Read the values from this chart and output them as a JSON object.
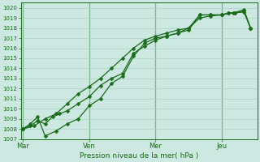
{
  "xlabel": "Pression niveau de la mer( hPa )",
  "bg_color": "#cce8e0",
  "grid_color": "#aad4c8",
  "line_color": "#1a6b1a",
  "spine_color": "#1a6b1a",
  "ylim": [
    1007,
    1020.5
  ],
  "ytick_min": 1007,
  "ytick_max": 1020,
  "xtick_labels": [
    "Mar",
    "Ven",
    "Mer",
    "Jeu"
  ],
  "xtick_positions": [
    0.0,
    3.0,
    6.0,
    9.0
  ],
  "xlim": [
    -0.1,
    10.6
  ],
  "series1_x": [
    0.0,
    0.33,
    0.66,
    1.0,
    1.33,
    1.66,
    2.0,
    2.5,
    3.0,
    3.5,
    4.0,
    4.5,
    5.0,
    5.5,
    6.0,
    6.5,
    7.0,
    7.5,
    8.0,
    8.5,
    9.0,
    9.3,
    9.6,
    10.0,
    10.3
  ],
  "series1_y": [
    1008.0,
    1008.3,
    1008.8,
    1008.5,
    1009.2,
    1009.5,
    1009.8,
    1010.5,
    1011.2,
    1012.3,
    1013.0,
    1013.5,
    1015.5,
    1016.2,
    1016.8,
    1017.2,
    1017.5,
    1017.8,
    1019.3,
    1019.3,
    1019.3,
    1019.5,
    1019.5,
    1019.6,
    1018.0
  ],
  "series2_x": [
    0.0,
    0.33,
    0.66,
    1.0,
    1.5,
    2.0,
    2.5,
    3.0,
    3.5,
    4.0,
    4.5,
    5.0,
    5.5,
    6.0,
    6.5,
    7.0,
    7.5,
    8.0,
    8.5,
    9.0,
    9.3,
    9.6,
    10.0,
    10.3
  ],
  "series2_y": [
    1008.0,
    1008.5,
    1009.2,
    1007.3,
    1007.8,
    1008.5,
    1009.0,
    1010.3,
    1011.0,
    1012.5,
    1013.2,
    1015.2,
    1016.5,
    1017.0,
    1017.2,
    1017.5,
    1018.0,
    1019.3,
    1019.3,
    1019.3,
    1019.5,
    1019.5,
    1019.7,
    1018.0
  ],
  "series3_x": [
    0.0,
    0.5,
    1.0,
    1.5,
    2.0,
    2.5,
    3.0,
    3.5,
    4.0,
    4.5,
    5.0,
    5.5,
    6.0,
    6.5,
    7.0,
    7.5,
    8.0,
    8.5,
    9.0,
    9.5,
    10.0,
    10.3
  ],
  "series3_y": [
    1008.0,
    1008.3,
    1009.0,
    1009.5,
    1010.5,
    1011.5,
    1012.2,
    1013.0,
    1014.0,
    1015.0,
    1016.0,
    1016.8,
    1017.2,
    1017.5,
    1017.8,
    1018.0,
    1019.0,
    1019.2,
    1019.3,
    1019.5,
    1019.8,
    1018.0
  ]
}
